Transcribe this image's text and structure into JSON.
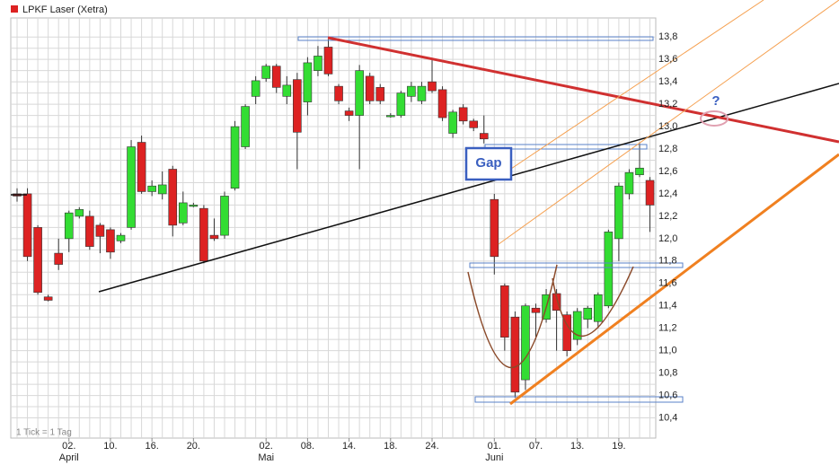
{
  "chart_data": {
    "type": "candlestick",
    "title": "LPKF Laser (Xetra)",
    "footnote": "1 Tick = 1 Tag",
    "annotations": [
      "Gap",
      "?"
    ],
    "up_color": "#33dd33",
    "down_color": "#dd2222",
    "title_color": "#dd2222",
    "ylim": [
      10.22,
      13.97
    ],
    "yticks": [
      {
        "value": 10.4,
        "label": "10,4"
      },
      {
        "value": 10.6,
        "label": "10,6"
      },
      {
        "value": 10.8,
        "label": "10,8"
      },
      {
        "value": 11.0,
        "label": "11,0"
      },
      {
        "value": 11.2,
        "label": "11,2"
      },
      {
        "value": 11.4,
        "label": "11,4"
      },
      {
        "value": 11.6,
        "label": "11,6"
      },
      {
        "value": 11.8,
        "label": "11,8"
      },
      {
        "value": 12.0,
        "label": "12,0"
      },
      {
        "value": 12.2,
        "label": "12,2"
      },
      {
        "value": 12.4,
        "label": "12,4"
      },
      {
        "value": 12.6,
        "label": "12,6"
      },
      {
        "value": 12.8,
        "label": "12,8"
      },
      {
        "value": 13.0,
        "label": "13,0"
      },
      {
        "value": 13.2,
        "label": "13,2"
      },
      {
        "value": 13.4,
        "label": "13,4"
      },
      {
        "value": 13.6,
        "label": "13,6"
      },
      {
        "value": 13.8,
        "label": "13,8"
      }
    ],
    "grid": true,
    "categories": [
      null,
      null,
      null,
      null,
      null,
      "02.",
      null,
      null,
      null,
      "10.",
      null,
      null,
      null,
      "16.",
      null,
      null,
      null,
      "20.",
      null,
      null,
      null,
      null,
      null,
      null,
      "02.",
      null,
      null,
      null,
      "08.",
      null,
      null,
      null,
      "14.",
      null,
      null,
      null,
      "18.",
      null,
      null,
      null,
      "24.",
      null,
      null,
      null,
      null,
      null,
      "01.",
      null,
      null,
      null,
      "07.",
      null,
      null,
      null,
      "13.",
      null,
      null,
      null,
      "19.",
      null,
      null,
      null
    ],
    "months": [
      null,
      null,
      null,
      null,
      null,
      "April",
      null,
      null,
      null,
      null,
      null,
      null,
      null,
      null,
      null,
      null,
      null,
      null,
      null,
      null,
      null,
      null,
      null,
      null,
      "Mai",
      null,
      null,
      null,
      null,
      null,
      null,
      null,
      null,
      null,
      null,
      null,
      null,
      null,
      null,
      null,
      null,
      null,
      null,
      null,
      null,
      null,
      "Juni",
      null,
      null,
      null,
      null,
      null,
      null,
      null,
      null,
      null,
      null,
      null,
      null,
      null,
      null,
      null
    ],
    "open": [
      12.4,
      12.4,
      12.1,
      11.48,
      11.87,
      12.0,
      12.2,
      12.2,
      12.12,
      12.08,
      11.98,
      12.1,
      12.86,
      12.42,
      12.4,
      12.62,
      12.14,
      12.3,
      12.27,
      12.03,
      12.03,
      12.45,
      12.82,
      13.27,
      13.43,
      13.54,
      13.27,
      13.42,
      13.22,
      13.5,
      13.71,
      13.36,
      13.14,
      13.1,
      13.45,
      13.35,
      13.1,
      13.1,
      13.27,
      13.23,
      13.4,
      13.33,
      12.94,
      13.17,
      13.05,
      12.94,
      12.35,
      11.58,
      11.3,
      10.74,
      11.38,
      11.28,
      11.51,
      11.32,
      11.1,
      11.28,
      11.26,
      11.4,
      12.0,
      12.4,
      12.57,
      12.52
    ],
    "high": [
      12.45,
      12.45,
      12.12,
      11.5,
      12.0,
      12.25,
      12.28,
      12.25,
      12.14,
      12.1,
      12.05,
      12.88,
      12.92,
      12.52,
      12.6,
      12.65,
      12.42,
      12.32,
      12.3,
      12.18,
      12.42,
      13.05,
      13.2,
      13.45,
      13.56,
      13.56,
      13.45,
      13.48,
      13.62,
      13.72,
      13.78,
      13.38,
      13.17,
      13.55,
      13.48,
      13.38,
      13.12,
      13.32,
      13.4,
      13.4,
      13.61,
      13.36,
      13.15,
      13.2,
      13.07,
      13.1,
      12.4,
      11.6,
      11.35,
      11.42,
      11.42,
      11.55,
      11.55,
      11.35,
      11.38,
      11.4,
      11.52,
      12.08,
      12.5,
      12.62,
      12.86,
      12.55
    ],
    "low": [
      12.33,
      11.8,
      11.5,
      11.44,
      11.72,
      11.88,
      12.18,
      11.9,
      11.87,
      11.82,
      11.96,
      12.08,
      12.4,
      12.38,
      12.35,
      12.02,
      12.12,
      12.28,
      11.78,
      11.98,
      12.0,
      12.43,
      12.8,
      13.2,
      13.4,
      13.3,
      13.2,
      12.62,
      13.1,
      13.45,
      13.45,
      13.2,
      13.05,
      12.62,
      13.2,
      13.2,
      13.08,
      13.08,
      13.22,
      13.2,
      13.3,
      13.05,
      12.9,
      13.02,
      12.96,
      12.85,
      11.68,
      11.0,
      10.58,
      10.65,
      11.1,
      11.25,
      11.0,
      10.95,
      11.05,
      11.2,
      11.2,
      11.38,
      11.8,
      12.35,
      12.55,
      12.06
    ],
    "close": [
      12.38,
      11.84,
      11.52,
      11.45,
      11.77,
      12.23,
      12.26,
      11.93,
      12.02,
      11.88,
      12.03,
      12.82,
      12.42,
      12.47,
      12.48,
      12.12,
      12.32,
      12.3,
      11.8,
      12.0,
      12.38,
      13.0,
      13.18,
      13.41,
      13.54,
      13.35,
      13.37,
      12.95,
      13.57,
      13.63,
      13.47,
      13.23,
      13.1,
      13.5,
      13.23,
      13.23,
      13.1,
      13.3,
      13.36,
      13.36,
      13.32,
      13.08,
      13.13,
      13.05,
      12.99,
      12.89,
      11.84,
      11.12,
      10.63,
      11.4,
      11.34,
      11.5,
      11.36,
      11.0,
      11.35,
      11.38,
      11.5,
      12.06,
      12.47,
      12.59,
      12.63,
      12.3
    ]
  }
}
